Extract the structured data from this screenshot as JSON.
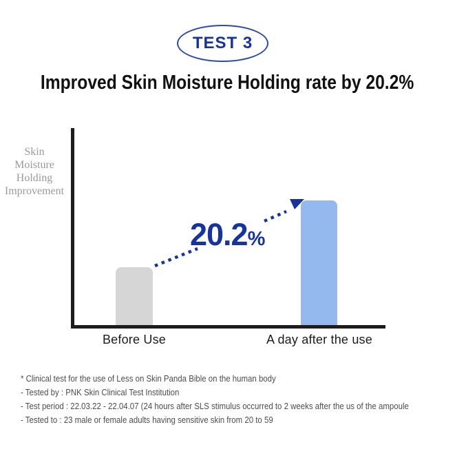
{
  "badge": {
    "label": "TEST 3"
  },
  "title": "Improved Skin Moisture Holding rate by 20.2%",
  "chart": {
    "annotation": {
      "value": "20.2",
      "unit": "%"
    }
  },
  "chart_data": {
    "type": "bar",
    "title": "Improved Skin Moisture Holding rate by 20.2%",
    "categories": [
      "Before Use",
      "A day after the use"
    ],
    "series": [
      {
        "name": "Skin Moisture Holding Improvement",
        "values": [
          29.5,
          63.5
        ]
      }
    ],
    "values_note": "no numeric axis shown; values are relative bar heights in % of plot height",
    "relative_heights": [
      0.295,
      0.635
    ],
    "improvement_annotation": "20.2%",
    "ylabel": "Skin Moisture Holding Improvement",
    "ylabel_lines": [
      "Skin",
      "Moisture",
      "Holding",
      "Improvement"
    ],
    "xlabel": "",
    "grid": false,
    "legend": "none",
    "bar_colors": [
      "#D6D6D6",
      "#93B9EE"
    ],
    "annotation_color": "#16349C",
    "axis_color": "#1D1D1D"
  },
  "footnotes": [
    "* Clinical test for the use of Less on Skin Panda Bible on the human body",
    "- Tested by : PNK Skin Clinical Test Institution",
    "- Test period : 22.03.22 - 22.04.07 (24 hours after SLS stimulus occurred to 2 weeks after the us of the ampoule",
    "- Tested to : 23 male or female adults having sensitive skin from 20 to 59"
  ],
  "colors": {
    "accent_blue": "#16349C",
    "badge_border": "#2C49AE",
    "bar_before": "#D6D6D6",
    "bar_after": "#93B9EE",
    "ylabel_gray": "#9A9A9A",
    "footnote_gray": "#4C4C4C",
    "axis_black": "#1D1D1D"
  }
}
